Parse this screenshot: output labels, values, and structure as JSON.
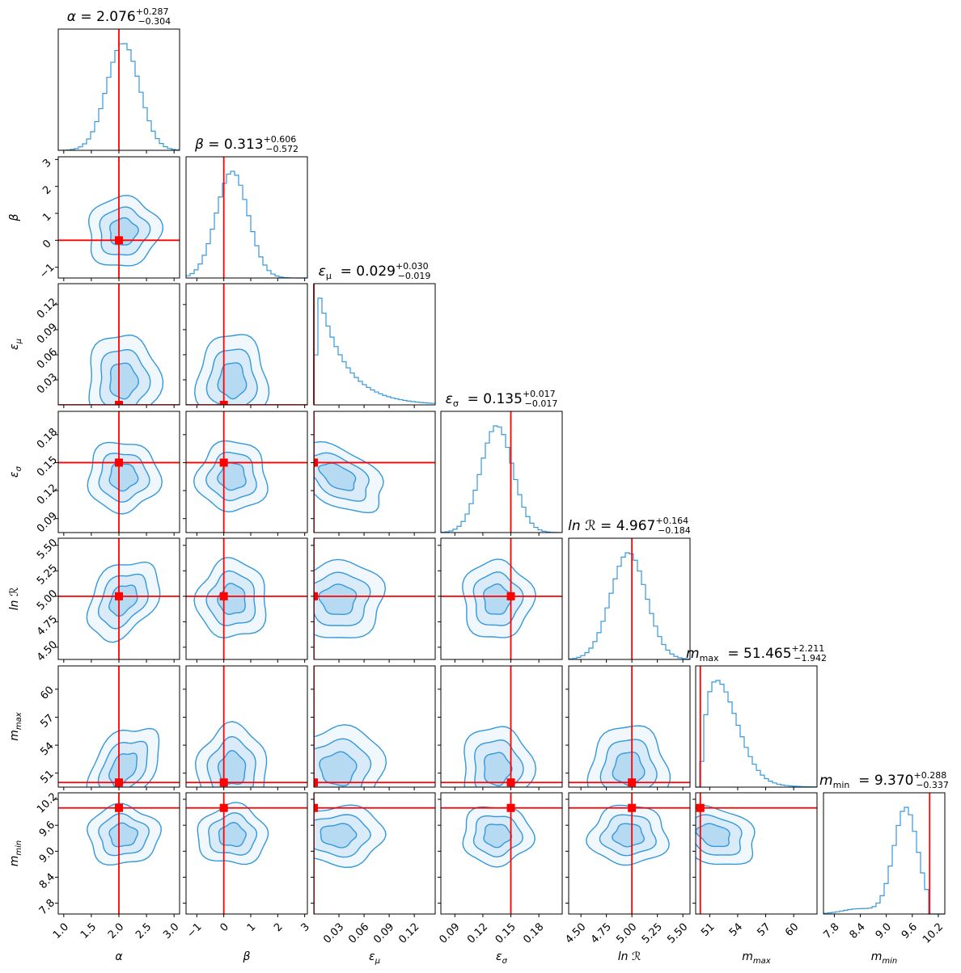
{
  "chart_data": {
    "type": "corner",
    "colors": {
      "samples": "#3498db",
      "truth": "#ff0000"
    },
    "parameters": [
      {
        "key": "alpha",
        "label": "α",
        "sub": "",
        "range": [
          0.9,
          3.1
        ],
        "ticks": [
          1.0,
          1.5,
          2.0,
          2.5,
          3.0
        ],
        "tick_labels": [
          "1.0",
          "1.5",
          "2.0",
          "2.5",
          "3.0"
        ],
        "truth": 2.0,
        "median": 2.076,
        "sigma": 0.295,
        "title_value": "2.076",
        "err_plus": "+0.287",
        "err_minus": "−0.304"
      },
      {
        "key": "beta",
        "label": "β",
        "sub": "",
        "range": [
          -1.4,
          3.1
        ],
        "ticks": [
          -1,
          0,
          1,
          2,
          3
        ],
        "tick_labels": [
          "−1",
          "0",
          "1",
          "2",
          "3"
        ],
        "truth": 0.0,
        "median": 0.313,
        "sigma": 0.59,
        "title_value": "0.313",
        "err_plus": "+0.606",
        "err_minus": "−0.572"
      },
      {
        "key": "eps_mu",
        "label": "ε",
        "sub": "μ",
        "range": [
          0.0,
          0.145
        ],
        "ticks": [
          0.03,
          0.06,
          0.09,
          0.12
        ],
        "tick_labels": [
          "0.03",
          "0.06",
          "0.09",
          "0.12"
        ],
        "truth": 0.0,
        "median": 0.029,
        "sigma": 0.025,
        "title_value": "0.029",
        "err_plus": "+0.030",
        "err_minus": "−0.019"
      },
      {
        "key": "eps_sigma",
        "label": "ε",
        "sub": "σ",
        "range": [
          0.075,
          0.205
        ],
        "ticks": [
          0.09,
          0.12,
          0.15,
          0.18
        ],
        "tick_labels": [
          "0.09",
          "0.12",
          "0.15",
          "0.18"
        ],
        "truth": 0.15,
        "median": 0.135,
        "sigma": 0.017,
        "title_value": "0.135",
        "err_plus": "+0.017",
        "err_minus": "−0.017"
      },
      {
        "key": "lnR",
        "label": "ln ℛ",
        "sub": "",
        "range": [
          4.38,
          5.57
        ],
        "ticks": [
          4.5,
          4.75,
          5.0,
          5.25,
          5.5
        ],
        "tick_labels": [
          "4.50",
          "4.75",
          "5.00",
          "5.25",
          "5.50"
        ],
        "truth": 5.0,
        "median": 4.967,
        "sigma": 0.174,
        "title_value": "4.967",
        "err_plus": "+0.164",
        "err_minus": "−0.184"
      },
      {
        "key": "m_max",
        "label": "m",
        "sub": "max",
        "range": [
          49.5,
          62.5
        ],
        "ticks": [
          51,
          54,
          57,
          60
        ],
        "tick_labels": [
          "51",
          "54",
          "57",
          "60"
        ],
        "truth": 50.0,
        "median": 51.465,
        "sigma": 2.07,
        "title_value": "51.465",
        "err_plus": "+2.211",
        "err_minus": "−1.942"
      },
      {
        "key": "m_min",
        "label": "m",
        "sub": "min",
        "range": [
          7.55,
          10.35
        ],
        "ticks": [
          7.8,
          8.4,
          9.0,
          9.6,
          10.2
        ],
        "tick_labels": [
          "7.8",
          "8.4",
          "9.0",
          "9.6",
          "10.2"
        ],
        "truth": 10.0,
        "median": 9.37,
        "sigma": 0.31,
        "title_value": "9.370",
        "err_plus": "+0.288",
        "err_minus": "−0.337"
      }
    ],
    "pair_correlations": {
      "1_0": 0.05,
      "2_0": 0.0,
      "2_1": 0.0,
      "3_0": 0.0,
      "3_1": 0.0,
      "3_2": -0.5,
      "4_0": 0.35,
      "4_1": 0.0,
      "4_2": 0.0,
      "4_3": 0.0,
      "5_0": 0.45,
      "5_1": 0.0,
      "5_2": 0.0,
      "5_3": 0.0,
      "5_4": 0.0,
      "6_0": 0.0,
      "6_1": 0.0,
      "6_2": 0.0,
      "6_3": 0.0,
      "6_4": 0.0,
      "6_5": -0.3
    }
  }
}
